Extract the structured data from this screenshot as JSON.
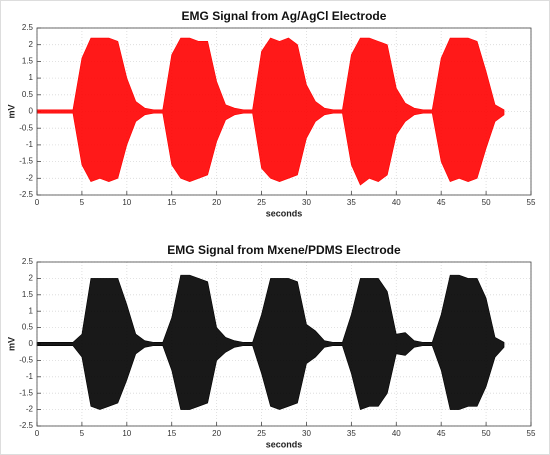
{
  "chart_data": [
    {
      "type": "band",
      "title": "EMG Signal from Ag/AgCl Electrode",
      "x_label": "seconds",
      "y_label": "mV",
      "color": "#ff0000",
      "grid": true,
      "x": [
        0,
        1,
        2,
        3,
        4,
        5,
        6,
        7,
        8,
        9,
        10,
        11,
        12,
        13,
        14,
        15,
        16,
        17,
        18,
        19,
        20,
        21,
        22,
        23,
        24,
        25,
        26,
        27,
        28,
        29,
        30,
        31,
        32,
        33,
        34,
        35,
        36,
        37,
        38,
        39,
        40,
        41,
        42,
        43,
        44,
        45,
        46,
        47,
        48,
        49,
        50,
        51,
        52
      ],
      "upper": [
        0.05,
        0.05,
        0.05,
        0.05,
        0.05,
        1.6,
        2.2,
        2.2,
        2.2,
        2.1,
        1.0,
        0.3,
        0.1,
        0.05,
        0.05,
        1.7,
        2.2,
        2.2,
        2.1,
        2.1,
        0.9,
        0.2,
        0.1,
        0.05,
        0.05,
        1.8,
        2.2,
        2.1,
        2.2,
        2.0,
        0.8,
        0.3,
        0.1,
        0.05,
        0.05,
        1.7,
        2.2,
        2.2,
        2.1,
        2.0,
        0.7,
        0.25,
        0.1,
        0.05,
        0.05,
        1.6,
        2.2,
        2.2,
        2.2,
        2.1,
        1.2,
        0.2,
        0.05
      ],
      "lower": [
        -0.05,
        -0.05,
        -0.05,
        -0.05,
        -0.05,
        -1.6,
        -2.1,
        -2.0,
        -2.1,
        -2.0,
        -1.0,
        -0.3,
        -0.1,
        -0.05,
        -0.05,
        -1.6,
        -2.0,
        -2.1,
        -2.0,
        -1.9,
        -0.9,
        -0.25,
        -0.1,
        -0.05,
        -0.05,
        -1.7,
        -2.0,
        -2.1,
        -2.0,
        -1.9,
        -0.8,
        -0.3,
        -0.1,
        -0.05,
        -0.05,
        -1.6,
        -2.2,
        -2.0,
        -2.1,
        -1.9,
        -0.7,
        -0.3,
        -0.1,
        -0.05,
        -0.05,
        -1.5,
        -2.1,
        -2.0,
        -2.1,
        -2.0,
        -1.1,
        -0.3,
        -0.1
      ],
      "xlim": [
        0,
        55
      ],
      "xticks": [
        0,
        5,
        10,
        15,
        20,
        25,
        30,
        35,
        40,
        45,
        50,
        55
      ],
      "ylim": [
        -2.5,
        2.5
      ],
      "yticks": [
        -2.5,
        -2,
        -1.5,
        -1,
        -0.5,
        0,
        0.5,
        1,
        1.5,
        2,
        2.5
      ]
    },
    {
      "type": "band",
      "title": "EMG Signal from Mxene/PDMS Electrode",
      "x_label": "seconds",
      "y_label": "mV",
      "color": "#000000",
      "grid": true,
      "x": [
        0,
        1,
        2,
        3,
        4,
        5,
        6,
        7,
        8,
        9,
        10,
        11,
        12,
        13,
        14,
        15,
        16,
        17,
        18,
        19,
        20,
        21,
        22,
        23,
        24,
        25,
        26,
        27,
        28,
        29,
        30,
        31,
        32,
        33,
        34,
        35,
        36,
        37,
        38,
        39,
        40,
        41,
        42,
        43,
        44,
        45,
        46,
        47,
        48,
        49,
        50,
        51,
        52
      ],
      "upper": [
        0.05,
        0.05,
        0.05,
        0.05,
        0.05,
        0.3,
        2.0,
        2.0,
        2.0,
        2.0,
        1.2,
        0.3,
        0.1,
        0.05,
        0.05,
        0.8,
        2.1,
        2.1,
        2.0,
        1.9,
        0.5,
        0.2,
        0.1,
        0.05,
        0.05,
        0.9,
        2.0,
        2.0,
        2.0,
        1.9,
        0.6,
        0.4,
        0.1,
        0.05,
        0.05,
        0.9,
        2.0,
        2.0,
        2.0,
        1.6,
        0.3,
        0.35,
        0.1,
        0.05,
        0.05,
        0.9,
        2.1,
        2.1,
        2.0,
        2.0,
        1.4,
        0.2,
        0.05
      ],
      "lower": [
        -0.05,
        -0.05,
        -0.05,
        -0.05,
        -0.05,
        -0.4,
        -1.9,
        -2.0,
        -1.9,
        -1.8,
        -1.1,
        -0.3,
        -0.1,
        -0.05,
        -0.05,
        -0.8,
        -2.0,
        -2.0,
        -1.9,
        -1.8,
        -0.5,
        -0.25,
        -0.1,
        -0.05,
        -0.05,
        -0.9,
        -1.9,
        -2.0,
        -1.9,
        -1.8,
        -0.6,
        -0.4,
        -0.1,
        -0.05,
        -0.05,
        -0.9,
        -2.0,
        -1.9,
        -1.9,
        -1.5,
        -0.3,
        -0.35,
        -0.1,
        -0.05,
        -0.05,
        -0.8,
        -2.0,
        -2.0,
        -1.9,
        -1.9,
        -1.3,
        -0.4,
        -0.1
      ],
      "xlim": [
        0,
        55
      ],
      "xticks": [
        0,
        5,
        10,
        15,
        20,
        25,
        30,
        35,
        40,
        45,
        50,
        55
      ],
      "ylim": [
        -2.5,
        2.5
      ],
      "yticks": [
        -2.5,
        -2,
        -1.5,
        -1,
        -0.5,
        0,
        0.5,
        1,
        1.5,
        2,
        2.5
      ]
    }
  ]
}
